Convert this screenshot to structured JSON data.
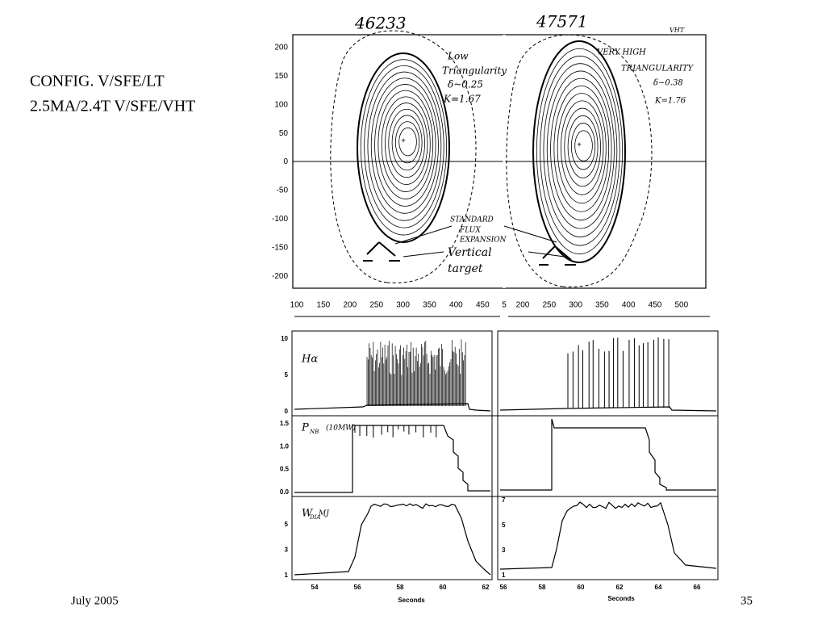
{
  "title_lines": [
    "CONFIG. V/SFE/LT",
    "2.5MA/2.4T V/SFE/VHT"
  ],
  "footer": {
    "date": "July 2005",
    "page": "35"
  },
  "figure": {
    "shots": [
      "46233",
      "47571"
    ],
    "corner_note": "VHT",
    "equilibrium": {
      "yticks": [
        200,
        150,
        100,
        50,
        0,
        -50,
        -100,
        -150,
        -200
      ],
      "xticks_left": [
        100,
        150,
        200,
        250,
        300,
        350,
        400,
        450
      ],
      "xtick_cut": "5",
      "xticks_right": [
        200,
        250,
        300,
        350,
        400,
        450,
        500
      ]
    },
    "annotations": {
      "left": [
        "Low",
        "Triangularity",
        "δ~0.25",
        "K=1.67"
      ],
      "right": [
        "VERY HIGH",
        "TRIANGULARITY",
        "δ~0.38",
        "K=1.76"
      ],
      "flux": [
        "STANDARD",
        "FLUX",
        "EXPANSION"
      ],
      "target": [
        "Vertical",
        "target"
      ]
    },
    "traces": {
      "halpha": {
        "label": "Hα",
        "ticks": [
          10,
          5,
          0
        ]
      },
      "pnb": {
        "label": "P",
        "sub": "NB",
        "unit": "(10MW)",
        "ticks": [
          "1.5",
          "1.0",
          "0.5",
          "0.0"
        ]
      },
      "wdia": {
        "label": "W",
        "sub": "DIA",
        "unit": "MJ",
        "ticks_left": [
          5,
          3,
          1
        ],
        "ticks_right": [
          7,
          5,
          3,
          1
        ]
      },
      "xticks_left": [
        54,
        56,
        58,
        60,
        62
      ],
      "xticks_right": [
        56,
        58,
        60,
        62,
        64,
        66
      ],
      "xlabel": "Seconds"
    }
  }
}
